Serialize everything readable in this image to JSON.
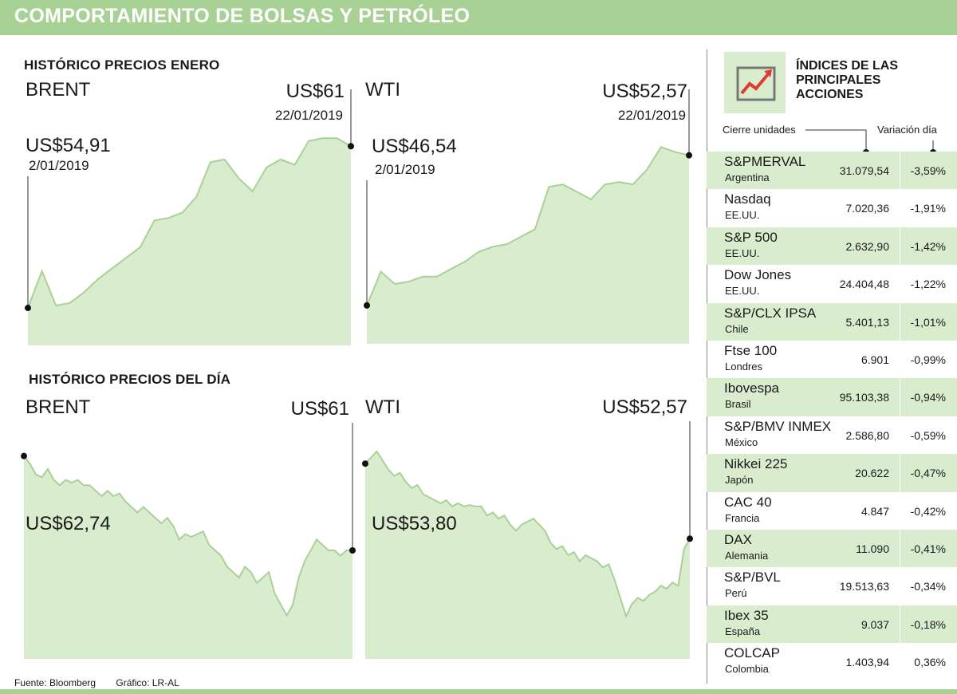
{
  "header": {
    "title": "COMPORTAMIENTO DE BOLSAS Y PETRÓLEO"
  },
  "sections": {
    "january_title": "HISTÓRICO PRECIOS  ENERO",
    "day_title": "HISTÓRICO PRECIOS DEL DÍA"
  },
  "colors": {
    "header_green": "#a8d295",
    "area_fill": "#d9ecce",
    "area_line": "#a8d295",
    "marker": "#111111"
  },
  "chart_data": [
    {
      "id": "brent_january",
      "type": "area",
      "series_name": "BRENT",
      "start_label": "US$54,91",
      "start_date": "2/01/2019",
      "end_label": "US$61",
      "end_date": "22/01/2019",
      "values": [
        54.91,
        56.3,
        55.0,
        55.1,
        55.5,
        56.0,
        56.4,
        56.8,
        57.2,
        58.2,
        58.3,
        58.5,
        59.1,
        60.4,
        60.5,
        59.8,
        59.3,
        60.2,
        60.5,
        60.3,
        61.2,
        61.3,
        61.3,
        61.0
      ],
      "ylim": [
        53.5,
        62.0
      ],
      "xlim": [
        0,
        23
      ],
      "marker_start": [
        0,
        54.91
      ],
      "marker_end": [
        23,
        61.0
      ]
    },
    {
      "id": "wti_january",
      "type": "area",
      "series_name": "WTI",
      "start_label": "US$46,54",
      "start_date": "2/01/2019",
      "end_label": "US$52,57",
      "end_date": "22/01/2019",
      "values": [
        46.54,
        47.9,
        47.4,
        47.5,
        47.7,
        47.7,
        48.0,
        48.3,
        48.7,
        48.9,
        49.0,
        49.3,
        49.6,
        51.3,
        51.4,
        51.1,
        50.8,
        51.4,
        51.5,
        51.4,
        52.0,
        52.9,
        52.7,
        52.57
      ],
      "ylim": [
        45.0,
        54.0
      ],
      "xlim": [
        0,
        23
      ],
      "marker_start": [
        0,
        46.54
      ],
      "marker_end": [
        23,
        52.57
      ]
    },
    {
      "id": "brent_day",
      "type": "area",
      "series_name": "BRENT",
      "start_label": "US$62,74",
      "end_label": "US$61",
      "values": [
        62.74,
        62.6,
        62.4,
        62.35,
        62.5,
        62.3,
        62.2,
        62.3,
        62.25,
        62.3,
        62.2,
        62.2,
        62.1,
        62.0,
        62.1,
        62.0,
        62.05,
        61.9,
        61.8,
        61.7,
        61.8,
        61.7,
        61.6,
        61.5,
        61.6,
        61.45,
        61.2,
        61.3,
        61.25,
        61.3,
        61.35,
        61.1,
        61.0,
        60.9,
        60.7,
        60.6,
        60.5,
        60.7,
        60.6,
        60.4,
        60.5,
        60.6,
        60.2,
        60.0,
        59.8,
        60.0,
        60.5,
        60.8,
        61.0,
        61.2,
        61.1,
        61.0,
        61.0,
        60.9,
        61.0,
        61.0
      ],
      "ylim": [
        59.0,
        63.5
      ],
      "marker_start_index": 0,
      "marker_end_index": 55
    },
    {
      "id": "wti_day",
      "type": "area",
      "series_name": "WTI",
      "start_label": "US$53,80",
      "end_label": "US$52,57",
      "values": [
        53.8,
        53.9,
        54.0,
        53.85,
        53.7,
        53.6,
        53.65,
        53.5,
        53.4,
        53.45,
        53.3,
        53.25,
        53.2,
        53.15,
        53.2,
        53.1,
        53.15,
        53.1,
        53.12,
        53.1,
        53.1,
        52.95,
        53.0,
        52.9,
        52.95,
        52.8,
        52.7,
        52.8,
        52.85,
        52.9,
        52.8,
        52.7,
        52.5,
        52.4,
        52.45,
        52.3,
        52.35,
        52.2,
        52.3,
        52.25,
        52.2,
        52.1,
        52.15,
        51.9,
        51.6,
        51.3,
        51.5,
        51.6,
        51.55,
        51.65,
        51.7,
        51.8,
        51.75,
        51.85,
        51.8,
        52.4,
        52.57
      ],
      "ylim": [
        50.6,
        54.6
      ],
      "marker_start_index": 0,
      "marker_end_index": 56
    }
  ],
  "indices": {
    "title": "ÍNDICES DE LAS PRINCIPALES ACCIONES",
    "head_left": "Cierre unidades",
    "head_right": "Variación día",
    "rows": [
      {
        "name": "S&PMERVAL",
        "country": "Argentina",
        "value": "31.079,54",
        "change": "-3,59%"
      },
      {
        "name": "Nasdaq",
        "country": "EE.UU.",
        "value": "7.020,36",
        "change": "-1,91%"
      },
      {
        "name": "S&P 500",
        "country": "EE.UU.",
        "value": "2.632,90",
        "change": "-1,42%"
      },
      {
        "name": "Dow Jones",
        "country": "EE.UU.",
        "value": "24.404,48",
        "change": "-1,22%"
      },
      {
        "name": "S&P/CLX IPSA",
        "country": "Chile",
        "value": "5.401,13",
        "change": "-1,01%"
      },
      {
        "name": "Ftse 100",
        "country": "Londres",
        "value": "6.901",
        "change": "-0,99%"
      },
      {
        "name": "Ibovespa",
        "country": "Brasil",
        "value": "95.103,38",
        "change": "-0,94%"
      },
      {
        "name": "S&P/BMV INMEX",
        "country": "México",
        "value": "2.586,80",
        "change": "-0,59%"
      },
      {
        "name": "Nikkei 225",
        "country": "Japón",
        "value": "20.622",
        "change": "-0,47%"
      },
      {
        "name": "CAC 40",
        "country": "Francia",
        "value": "4.847",
        "change": "-0,42%"
      },
      {
        "name": "DAX",
        "country": "Alemania",
        "value": "11.090",
        "change": "-0,41%"
      },
      {
        "name": "S&P/BVL",
        "country": "Perú",
        "value": "19.513,63",
        "change": "-0,34%"
      },
      {
        "name": "Ibex 35",
        "country": "España",
        "value": "9.037",
        "change": "-0,18%"
      },
      {
        "name": "COLCAP",
        "country": "Colombia",
        "value": "1.403,94",
        "change": "0,36%"
      }
    ]
  },
  "footer": {
    "source": "Fuente: Bloomberg",
    "credit": "Gráfico: LR-AL"
  },
  "icons": {
    "panel_icon": "rising-chart-icon"
  }
}
